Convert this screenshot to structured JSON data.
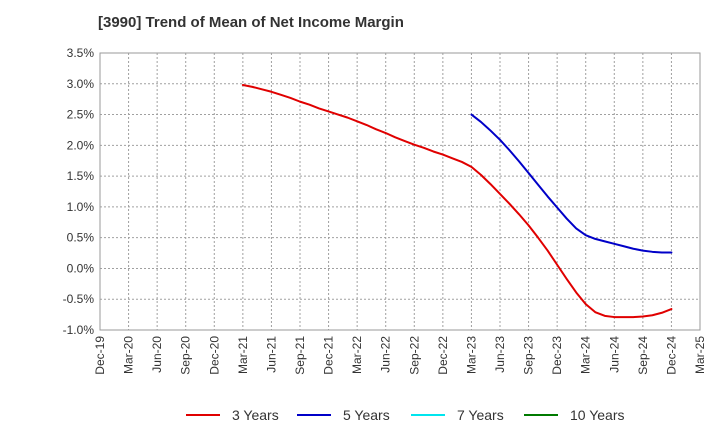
{
  "title": "[3990]  Trend of Mean of Net Income Margin",
  "colors": {
    "three_years": "#e00000",
    "five_years": "#0000c8",
    "seven_years": "#00e5ee",
    "ten_years": "#007a00",
    "grid": "#a0a0a0",
    "axis_text": "#333333"
  },
  "chart_data": {
    "type": "line",
    "title": "[3990]  Trend of Mean of Net Income Margin",
    "xlabel": "",
    "ylabel": "",
    "x_ticks": [
      "Dec-19",
      "Mar-20",
      "Jun-20",
      "Sep-20",
      "Dec-20",
      "Mar-21",
      "Jun-21",
      "Sep-21",
      "Dec-21",
      "Mar-22",
      "Jun-22",
      "Sep-22",
      "Dec-22",
      "Mar-23",
      "Jun-23",
      "Sep-23",
      "Dec-23",
      "Mar-24",
      "Jun-24",
      "Sep-24",
      "Dec-24",
      "Mar-25"
    ],
    "y_ticks": [
      "3.5%",
      "3.0%",
      "2.5%",
      "2.0%",
      "1.5%",
      "1.0%",
      "0.5%",
      "0.0%",
      "-0.5%",
      "-1.0%"
    ],
    "ylim": [
      -1.0,
      3.5
    ],
    "grid": true,
    "legend_position": "bottom",
    "series": [
      {
        "name": "3 Years",
        "color": "#e00000",
        "x": [
          "Mar-21",
          "Apr-21",
          "May-21",
          "Jun-21",
          "Jul-21",
          "Aug-21",
          "Sep-21",
          "Oct-21",
          "Nov-21",
          "Dec-21",
          "Jan-22",
          "Feb-22",
          "Mar-22",
          "Apr-22",
          "May-22",
          "Jun-22",
          "Jul-22",
          "Aug-22",
          "Sep-22",
          "Oct-22",
          "Nov-22",
          "Dec-22",
          "Jan-23",
          "Feb-23",
          "Mar-23",
          "Apr-23",
          "May-23",
          "Jun-23",
          "Jul-23",
          "Aug-23",
          "Sep-23",
          "Oct-23",
          "Nov-23",
          "Dec-23",
          "Jan-24",
          "Feb-24",
          "Mar-24",
          "Apr-24",
          "May-24",
          "Jun-24",
          "Jul-24",
          "Aug-24",
          "Sep-24",
          "Oct-24",
          "Nov-24",
          "Dec-24"
        ],
        "values": [
          2.98,
          2.95,
          2.91,
          2.87,
          2.82,
          2.77,
          2.71,
          2.66,
          2.6,
          2.55,
          2.5,
          2.45,
          2.39,
          2.33,
          2.26,
          2.2,
          2.13,
          2.07,
          2.01,
          1.96,
          1.9,
          1.85,
          1.79,
          1.73,
          1.65,
          1.52,
          1.37,
          1.21,
          1.05,
          0.88,
          0.7,
          0.5,
          0.29,
          0.06,
          -0.17,
          -0.39,
          -0.58,
          -0.71,
          -0.77,
          -0.79,
          -0.79,
          -0.79,
          -0.78,
          -0.76,
          -0.72,
          -0.66
        ]
      },
      {
        "name": "5 Years",
        "color": "#0000c8",
        "x": [
          "Mar-23",
          "Apr-23",
          "May-23",
          "Jun-23",
          "Jul-23",
          "Aug-23",
          "Sep-23",
          "Oct-23",
          "Nov-23",
          "Dec-23",
          "Jan-24",
          "Feb-24",
          "Mar-24",
          "Apr-24",
          "May-24",
          "Jun-24",
          "Jul-24",
          "Aug-24",
          "Sep-24",
          "Oct-24",
          "Nov-24",
          "Dec-24"
        ],
        "values": [
          2.5,
          2.38,
          2.24,
          2.09,
          1.92,
          1.74,
          1.55,
          1.36,
          1.17,
          0.99,
          0.81,
          0.65,
          0.54,
          0.48,
          0.44,
          0.4,
          0.36,
          0.32,
          0.29,
          0.27,
          0.26,
          0.26
        ]
      },
      {
        "name": "7 Years",
        "color": "#00e5ee",
        "x": [],
        "values": []
      },
      {
        "name": "10 Years",
        "color": "#007a00",
        "x": [],
        "values": []
      }
    ]
  }
}
